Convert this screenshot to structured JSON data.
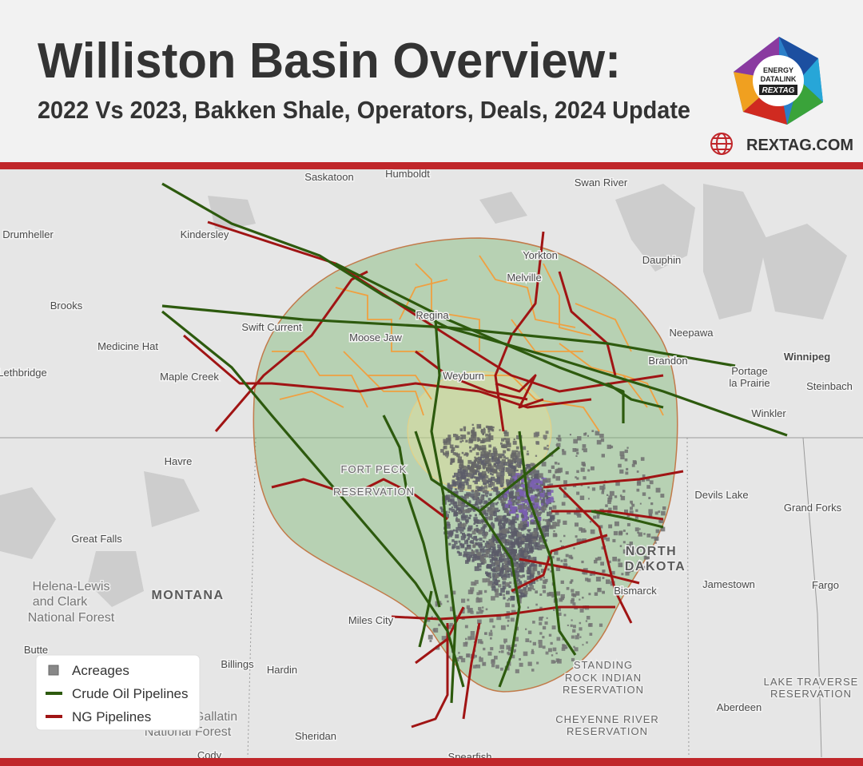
{
  "header": {
    "title": "Williston Basin Overview:",
    "subtitle": "2022 Vs 2023, Bakken Shale, Operators, Deals, 2024 Update",
    "website": "REXTAG.COM",
    "logo": [
      "ENERGY",
      "DATALINK",
      "REXTAG"
    ]
  },
  "legend": [
    {
      "label": "Acreages"
    },
    {
      "label": "Crude Oil Pipelines"
    },
    {
      "label": "NG Pipelines"
    }
  ],
  "map": {
    "places": [
      "Saskatoon",
      "Humboldt",
      "Swan River",
      "Drumheller",
      "Kindersley",
      "Yorkton",
      "Dauphin",
      "Melville",
      "Brooks",
      "Regina",
      "Swift Current",
      "Moose Jaw",
      "Neepawa",
      "Winnipeg",
      "Medicine Hat",
      "Brandon",
      "Portage",
      "la Prairie",
      "Lethbridge",
      "Maple Creek",
      "Weyburn",
      "Steinbach",
      "Winkler",
      "Havre",
      "Devils Lake",
      "Grand Forks",
      "Great Falls",
      "Jamestown",
      "Bismarck",
      "Fargo",
      "Miles City",
      "Butte",
      "Billings",
      "Hardin",
      "Aberdeen",
      "Sheridan",
      "Cody",
      "Spearfish"
    ],
    "regions": [
      "NORTH",
      "DAKOTA",
      "MONTANA"
    ],
    "areas": [
      "Helena-Lewis",
      "and Clark",
      "National Forest",
      "Gallatin",
      "National Forest",
      "STANDING",
      "ROCK INDIAN",
      "RESERVATION",
      "LAKE TRAVERSE",
      "RESERVATION",
      "CHEYENNE RIVER",
      "RESERVATION",
      "FORT PECK",
      "RESERVATION"
    ]
  }
}
